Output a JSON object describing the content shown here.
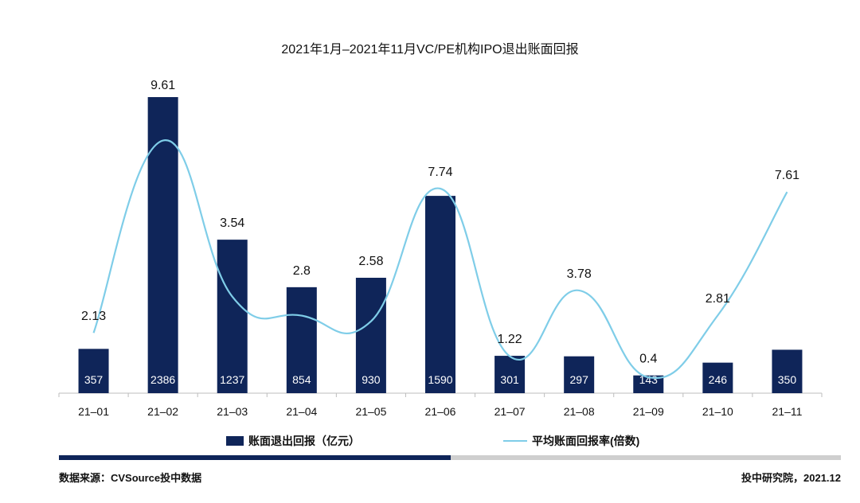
{
  "chart_data": {
    "type": "bar",
    "title": "2021年1月–2021年11月VC/PE机构IPO退出账面回报",
    "categories": [
      "21–01",
      "21–02",
      "21–03",
      "21–04",
      "21–05",
      "21–06",
      "21–07",
      "21–08",
      "21–09",
      "21–10",
      "21–11"
    ],
    "series": [
      {
        "name": "账面退出回报（亿元）",
        "type": "bar",
        "color": "#0f2559",
        "values": [
          357,
          2386,
          1237,
          854,
          930,
          1590,
          301,
          297,
          143,
          246,
          350
        ]
      },
      {
        "name": "平均账面回报率(倍数)",
        "type": "line",
        "color": "#7fcde8",
        "values": [
          2.13,
          9.61,
          3.54,
          2.8,
          2.58,
          7.74,
          1.22,
          3.78,
          0.4,
          2.81,
          7.61
        ]
      }
    ],
    "legend_position": "bottom",
    "grid": false
  },
  "footer": {
    "source": "数据来源：CVSource投中数据",
    "credit": "投中研究院，2021.12",
    "bar_left_color": "#0f2559",
    "bar_right_color": "#cfcfcf"
  }
}
